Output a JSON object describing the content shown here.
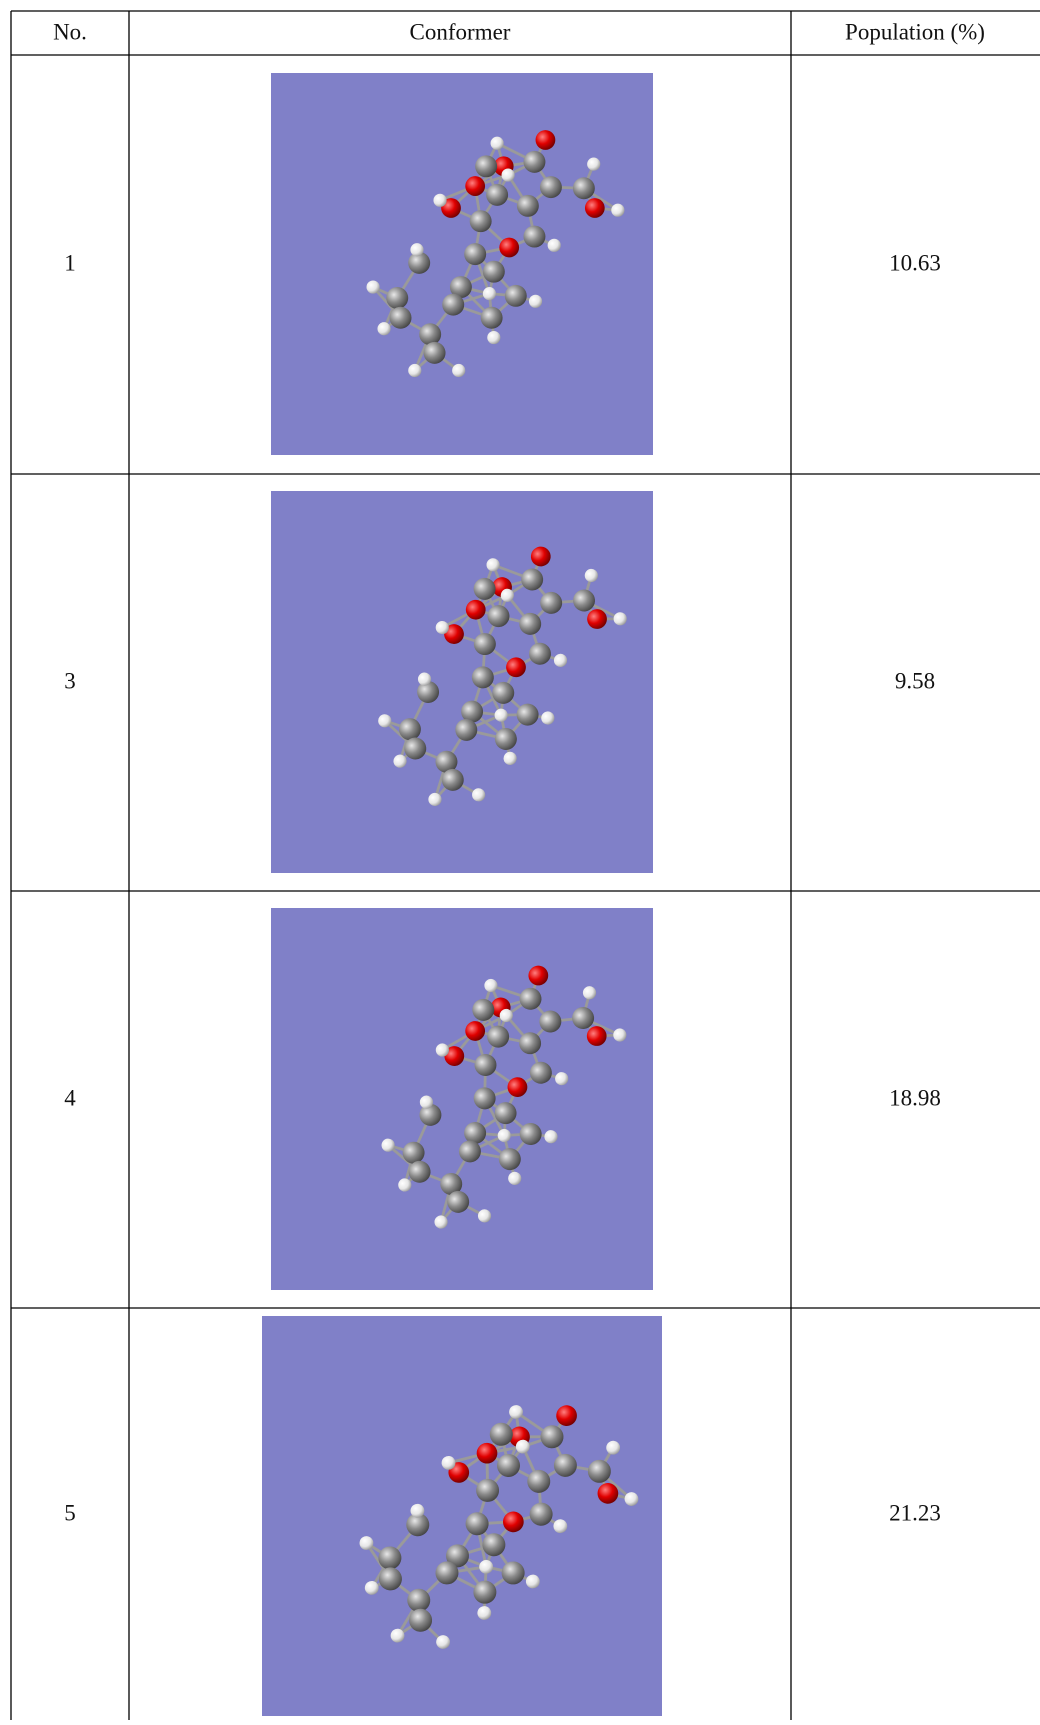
{
  "table": {
    "columns": [
      "No.",
      "Conformer",
      "Population (%)"
    ],
    "rows": [
      {
        "no": "1",
        "population": "10.63"
      },
      {
        "no": "3",
        "population": "9.58"
      },
      {
        "no": "4",
        "population": "18.98"
      },
      {
        "no": "5",
        "population": "21.23"
      }
    ]
  }
}
